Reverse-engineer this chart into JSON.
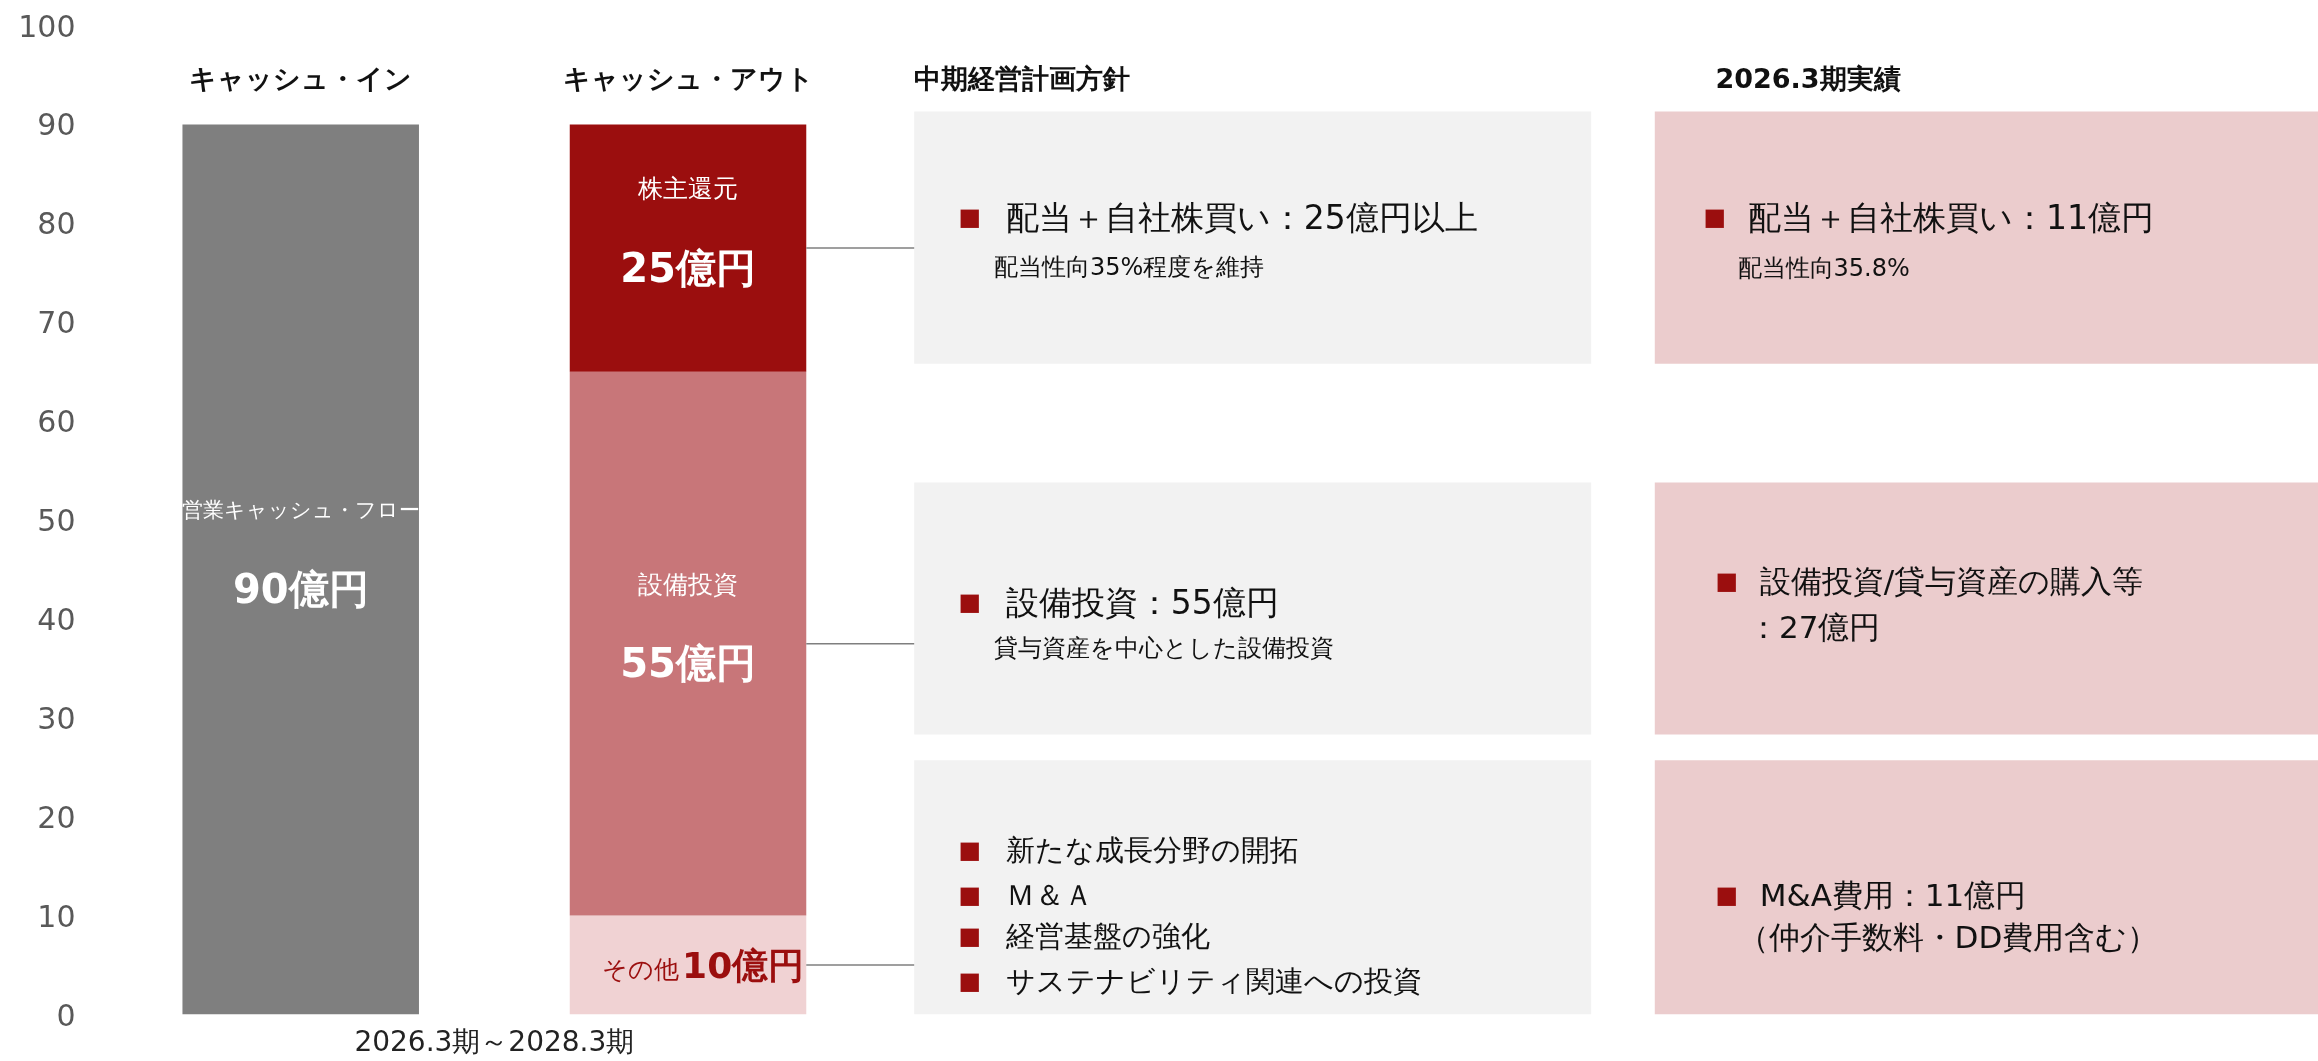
{
  "chart_data": {
    "type": "bar",
    "stacked": true,
    "xlabel": "2026.3期～2028.3期",
    "categories": [
      "キャッシュ・イン",
      "キャッシュ・アウト"
    ],
    "series": [
      {
        "name": "営業キャッシュ・フロー",
        "color": "#7f7f7f",
        "values": [
          90,
          null
        ],
        "value_labels": [
          "90億円",
          null
        ]
      },
      {
        "name": "その他",
        "color": "#f0d2d3",
        "values": [
          null,
          10
        ],
        "value_labels": [
          null,
          "10億円"
        ]
      },
      {
        "name": "設備投資",
        "color": "#c87679",
        "values": [
          null,
          55
        ],
        "value_labels": [
          null,
          "55億円"
        ]
      },
      {
        "name": "株主還元",
        "color": "#9b0e0e",
        "values": [
          null,
          25
        ],
        "value_labels": [
          null,
          "25億円"
        ]
      }
    ],
    "ylim": [
      0,
      100
    ],
    "yticks": [
      0,
      10,
      20,
      30,
      40,
      50,
      60,
      70,
      80,
      90,
      100
    ],
    "annotations": [
      "中期経営計画方針",
      "2026.3期実績",
      "■ 配当＋自社株買い：25億円以上",
      "配当性向35%程度を維持",
      "■ 設備投資：55億円",
      "貸与資産を中心とした設備投資",
      "■ 新たな成長分野の開拓",
      "■ Ｍ＆Ａ",
      "■ 経営基盤の強化",
      "■ サステナビリティ関連への投資",
      "■ 配当＋自社株買い：11億円",
      "配当性向35.8%",
      "■ 設備投資/貸与資産の購入等",
      "：27億円",
      "■ M&A費用：11億円",
      "（仲介手数料・DD費用含む）"
    ]
  }
}
